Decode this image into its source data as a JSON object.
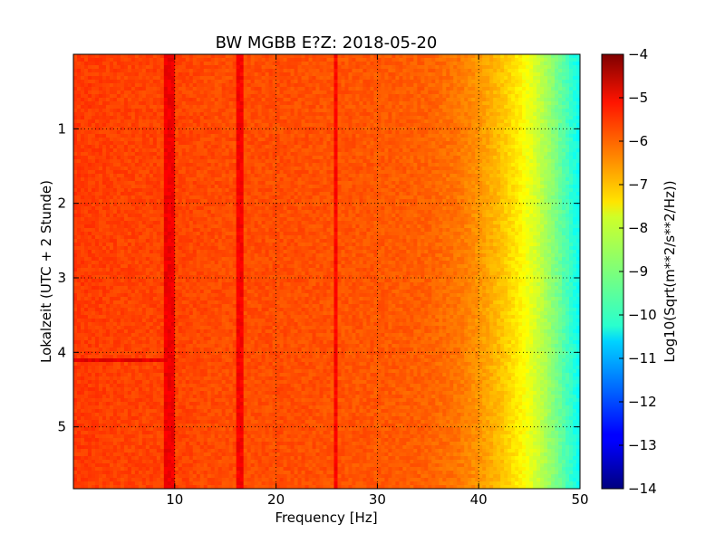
{
  "chart_data": {
    "type": "heatmap",
    "title": "BW MGBB E?Z: 2018-05-20",
    "xlabel": "Frequency [Hz]",
    "ylabel": "Lokalzeit (UTC + 2 Stunde)",
    "xlim": [
      0,
      50
    ],
    "ylim": [
      0,
      5.83
    ],
    "y_inverted": true,
    "xticks": [
      10,
      20,
      30,
      40,
      50
    ],
    "xtick_labels": [
      "10",
      "20",
      "30",
      "40",
      "50"
    ],
    "yticks": [
      1,
      2,
      3,
      4,
      5
    ],
    "ytick_labels": [
      "1",
      "2",
      "3",
      "4",
      "5"
    ],
    "grid": true,
    "colormap": "jet",
    "colorbar": {
      "label": "Log10(Sqrt(m**2/s**2/Hz))",
      "range": [
        -14,
        -4
      ],
      "ticks": [
        -4,
        -5,
        -6,
        -7,
        -8,
        -9,
        -10,
        -11,
        -12,
        -13,
        -14
      ],
      "tick_labels": [
        "−4",
        "−5",
        "−6",
        "−7",
        "−8",
        "−9",
        "−10",
        "−11",
        "−12",
        "−13",
        "−14"
      ]
    },
    "spectrum_profile": {
      "frequency_hz": [
        0,
        5,
        10,
        15,
        20,
        25,
        30,
        35,
        38,
        40,
        42,
        44,
        46,
        48,
        50
      ],
      "log_amplitude": [
        -5.8,
        -5.9,
        -5.9,
        -6.0,
        -6.0,
        -6.05,
        -6.1,
        -6.2,
        -6.4,
        -6.7,
        -7.1,
        -7.6,
        -8.3,
        -9.2,
        -10.2
      ]
    },
    "narrowband_lines_hz": [
      9.3,
      9.8,
      16.2,
      16.6,
      25.9
    ],
    "broadband_event_hour": 4.12
  }
}
